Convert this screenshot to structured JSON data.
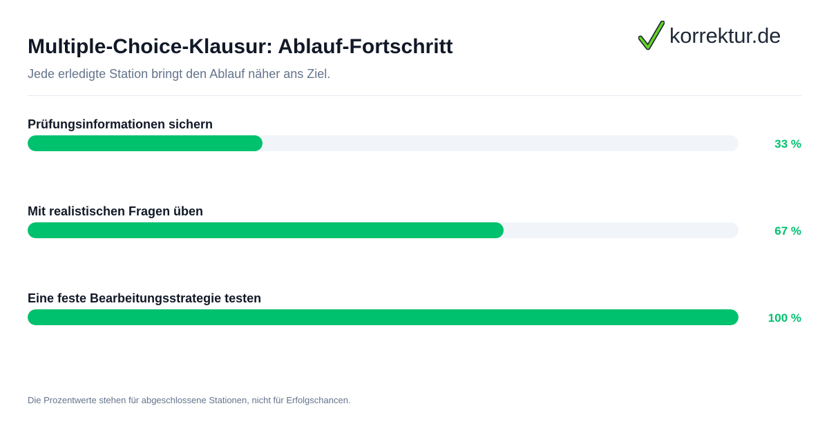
{
  "header": {
    "title": "Multiple-Choice-Klausur: Ablauf-Fortschritt",
    "subtitle": "Jede erledigte Station bringt den Ablauf näher ans Ziel."
  },
  "logo": {
    "text": "korrektur.de",
    "icon": "checkmark-icon",
    "check_color": "#65d61f"
  },
  "colors": {
    "accent": "#00c16e",
    "track": "#f1f5f9",
    "text": "#111827",
    "muted": "#64748b"
  },
  "chart_data": {
    "type": "bar",
    "orientation": "horizontal",
    "categories": [
      "Prüfungsinformationen sichern",
      "Mit realistischen Fragen üben",
      "Eine feste Bearbeitungsstrategie testen"
    ],
    "values": [
      33,
      67,
      100
    ],
    "value_labels": [
      "33 %",
      "67 %",
      "100 %"
    ],
    "xlim": [
      0,
      100
    ],
    "unit": "%",
    "grid": false,
    "legend": "none"
  },
  "footnote": "Die Prozentwerte stehen für abgeschlossene Stationen, nicht für Erfolgschancen."
}
